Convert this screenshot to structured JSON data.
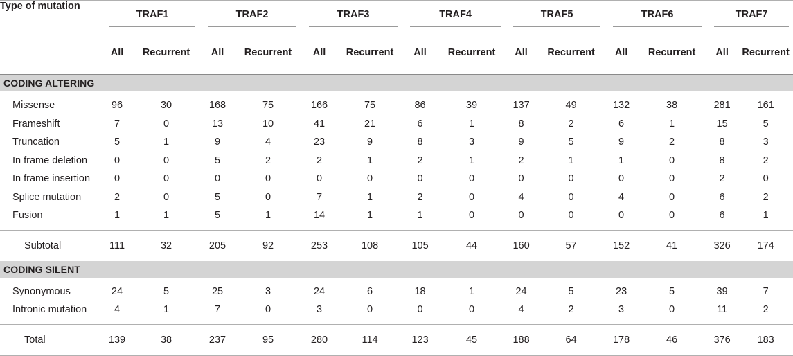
{
  "header": {
    "corner": "Type of mutation",
    "genes": [
      "TRAF1",
      "TRAF2",
      "TRAF3",
      "TRAF4",
      "TRAF5",
      "TRAF6",
      "TRAF7"
    ],
    "sub_all": "All",
    "sub_recurrent": "Recurrent"
  },
  "sections": [
    {
      "title": "CODING ALTERING",
      "rows": [
        {
          "label": "Missense",
          "values": [
            "96",
            "30",
            "168",
            "75",
            "166",
            "75",
            "86",
            "39",
            "137",
            "49",
            "132",
            "38",
            "281",
            "161"
          ]
        },
        {
          "label": "Frameshift",
          "values": [
            "7",
            "0",
            "13",
            "10",
            "41",
            "21",
            "6",
            "1",
            "8",
            "2",
            "6",
            "1",
            "15",
            "5"
          ]
        },
        {
          "label": "Truncation",
          "values": [
            "5",
            "1",
            "9",
            "4",
            "23",
            "9",
            "8",
            "3",
            "9",
            "5",
            "9",
            "2",
            "8",
            "3"
          ]
        },
        {
          "label": "In frame deletion",
          "values": [
            "0",
            "0",
            "5",
            "2",
            "2",
            "1",
            "2",
            "1",
            "2",
            "1",
            "1",
            "0",
            "8",
            "2"
          ]
        },
        {
          "label": "In frame insertion",
          "values": [
            "0",
            "0",
            "0",
            "0",
            "0",
            "0",
            "0",
            "0",
            "0",
            "0",
            "0",
            "0",
            "2",
            "0"
          ]
        },
        {
          "label": "Splice mutation",
          "values": [
            "2",
            "0",
            "5",
            "0",
            "7",
            "1",
            "2",
            "0",
            "4",
            "0",
            "4",
            "0",
            "6",
            "2"
          ]
        },
        {
          "label": "Fusion",
          "values": [
            "1",
            "1",
            "5",
            "1",
            "14",
            "1",
            "1",
            "0",
            "0",
            "0",
            "0",
            "0",
            "6",
            "1"
          ]
        }
      ],
      "summary": {
        "label": "Subtotal",
        "values": [
          "111",
          "32",
          "205",
          "92",
          "253",
          "108",
          "105",
          "44",
          "160",
          "57",
          "152",
          "41",
          "326",
          "174"
        ]
      }
    },
    {
      "title": "CODING SILENT",
      "rows": [
        {
          "label": "Synonymous",
          "values": [
            "24",
            "5",
            "25",
            "3",
            "24",
            "6",
            "18",
            "1",
            "24",
            "5",
            "23",
            "5",
            "39",
            "7"
          ]
        },
        {
          "label": "Intronic mutation",
          "values": [
            "4",
            "1",
            "7",
            "0",
            "3",
            "0",
            "0",
            "0",
            "4",
            "2",
            "3",
            "0",
            "11",
            "2"
          ]
        }
      ],
      "summary": {
        "label": "Total",
        "values": [
          "139",
          "38",
          "237",
          "95",
          "280",
          "114",
          "123",
          "45",
          "188",
          "64",
          "178",
          "46",
          "376",
          "183"
        ]
      }
    }
  ]
}
